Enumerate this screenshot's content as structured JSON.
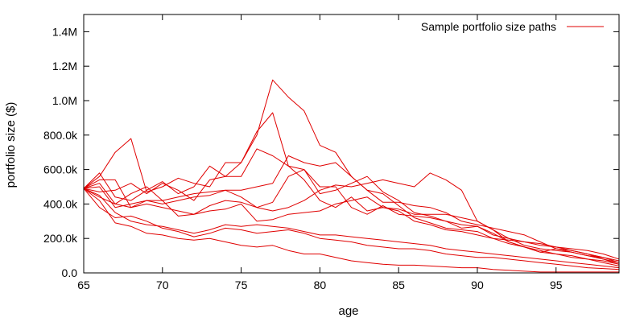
{
  "chart_data": {
    "type": "line",
    "title": "",
    "xlabel": "age",
    "ylabel": "portfolio size ($)",
    "xlim": [
      65,
      99
    ],
    "ylim": [
      0,
      1500000
    ],
    "grid": false,
    "legend": {
      "placement": "top-right",
      "entries": [
        "Sample portfolio size paths"
      ]
    },
    "line_color": "#e00000",
    "x_ticks": [
      {
        "value": 65,
        "label": "65"
      },
      {
        "value": 70,
        "label": "70"
      },
      {
        "value": 75,
        "label": "75"
      },
      {
        "value": 80,
        "label": "80"
      },
      {
        "value": 85,
        "label": "85"
      },
      {
        "value": 90,
        "label": "90"
      },
      {
        "value": 95,
        "label": "95"
      }
    ],
    "y_ticks": [
      {
        "value": 0,
        "label": "0.0"
      },
      {
        "value": 200000,
        "label": "200.0k"
      },
      {
        "value": 400000,
        "label": "400.0k"
      },
      {
        "value": 600000,
        "label": "600.0k"
      },
      {
        "value": 800000,
        "label": "800.0k"
      },
      {
        "value": 1000000,
        "label": "1.0M"
      },
      {
        "value": 1200000,
        "label": "1.2M"
      },
      {
        "value": 1400000,
        "label": "1.4M"
      }
    ],
    "x": [
      65,
      66,
      67,
      68,
      69,
      70,
      71,
      72,
      73,
      74,
      75,
      76,
      77,
      78,
      79,
      80,
      81,
      82,
      83,
      84,
      85,
      86,
      87,
      88,
      89,
      90,
      91,
      92,
      93,
      94,
      95,
      96,
      97,
      98,
      99
    ],
    "series": [
      {
        "values": [
          490000,
          580000,
          440000,
          420000,
          480000,
          530000,
          460000,
          500000,
          620000,
          560000,
          640000,
          800000,
          1120000,
          1020000,
          940000,
          740000,
          700000,
          560000,
          480000,
          460000,
          390000,
          320000,
          290000,
          260000,
          250000,
          240000,
          200000,
          190000,
          180000,
          160000,
          150000,
          140000,
          130000,
          110000,
          80000
        ]
      },
      {
        "values": [
          490000,
          560000,
          700000,
          780000,
          470000,
          500000,
          550000,
          520000,
          500000,
          640000,
          640000,
          820000,
          930000,
          620000,
          600000,
          460000,
          480000,
          520000,
          560000,
          470000,
          420000,
          350000,
          330000,
          300000,
          280000,
          270000,
          220000,
          200000,
          180000,
          170000,
          150000,
          130000,
          110000,
          90000,
          60000
        ]
      },
      {
        "values": [
          490000,
          520000,
          400000,
          460000,
          500000,
          420000,
          440000,
          460000,
          470000,
          480000,
          480000,
          500000,
          520000,
          680000,
          640000,
          620000,
          640000,
          560000,
          480000,
          410000,
          410000,
          390000,
          380000,
          350000,
          300000,
          280000,
          260000,
          240000,
          220000,
          180000,
          140000,
          120000,
          100000,
          80000,
          60000
        ]
      },
      {
        "values": [
          490000,
          500000,
          380000,
          400000,
          420000,
          400000,
          420000,
          440000,
          450000,
          480000,
          440000,
          380000,
          360000,
          380000,
          420000,
          480000,
          510000,
          500000,
          520000,
          540000,
          520000,
          500000,
          580000,
          540000,
          480000,
          300000,
          250000,
          180000,
          150000,
          120000,
          140000,
          130000,
          110000,
          80000,
          50000
        ]
      },
      {
        "values": [
          490000,
          470000,
          480000,
          520000,
          460000,
          520000,
          480000,
          420000,
          540000,
          560000,
          560000,
          720000,
          680000,
          620000,
          540000,
          420000,
          380000,
          440000,
          360000,
          380000,
          370000,
          340000,
          340000,
          340000,
          320000,
          300000,
          250000,
          200000,
          160000,
          140000,
          130000,
          120000,
          100000,
          90000,
          70000
        ]
      },
      {
        "values": [
          490000,
          540000,
          540000,
          380000,
          420000,
          420000,
          330000,
          340000,
          390000,
          420000,
          410000,
          380000,
          410000,
          560000,
          600000,
          500000,
          500000,
          380000,
          340000,
          390000,
          340000,
          330000,
          320000,
          300000,
          260000,
          270000,
          230000,
          180000,
          150000,
          120000,
          110000,
          100000,
          80000,
          70000,
          50000
        ]
      },
      {
        "values": [
          490000,
          440000,
          400000,
          380000,
          400000,
          380000,
          360000,
          340000,
          360000,
          370000,
          400000,
          300000,
          310000,
          340000,
          350000,
          360000,
          400000,
          420000,
          440000,
          380000,
          360000,
          300000,
          280000,
          250000,
          240000,
          220000,
          200000,
          170000,
          150000,
          130000,
          110000,
          90000,
          80000,
          60000,
          40000
        ]
      },
      {
        "values": [
          490000,
          380000,
          320000,
          330000,
          300000,
          260000,
          240000,
          210000,
          230000,
          260000,
          250000,
          230000,
          240000,
          250000,
          230000,
          200000,
          190000,
          180000,
          160000,
          150000,
          140000,
          140000,
          130000,
          110000,
          100000,
          90000,
          90000,
          80000,
          70000,
          60000,
          50000,
          40000,
          30000,
          25000,
          20000
        ]
      },
      {
        "values": [
          490000,
          420000,
          290000,
          270000,
          230000,
          220000,
          200000,
          190000,
          200000,
          180000,
          160000,
          150000,
          160000,
          130000,
          110000,
          110000,
          90000,
          70000,
          60000,
          50000,
          45000,
          45000,
          40000,
          35000,
          30000,
          30000,
          20000,
          15000,
          10000,
          5000,
          5000,
          5000,
          5000,
          5000,
          5000
        ]
      },
      {
        "values": [
          490000,
          450000,
          350000,
          300000,
          280000,
          270000,
          250000,
          230000,
          250000,
          280000,
          270000,
          280000,
          270000,
          260000,
          240000,
          220000,
          220000,
          210000,
          200000,
          190000,
          180000,
          170000,
          160000,
          140000,
          130000,
          120000,
          110000,
          100000,
          90000,
          80000,
          70000,
          60000,
          50000,
          40000,
          30000
        ]
      }
    ]
  }
}
